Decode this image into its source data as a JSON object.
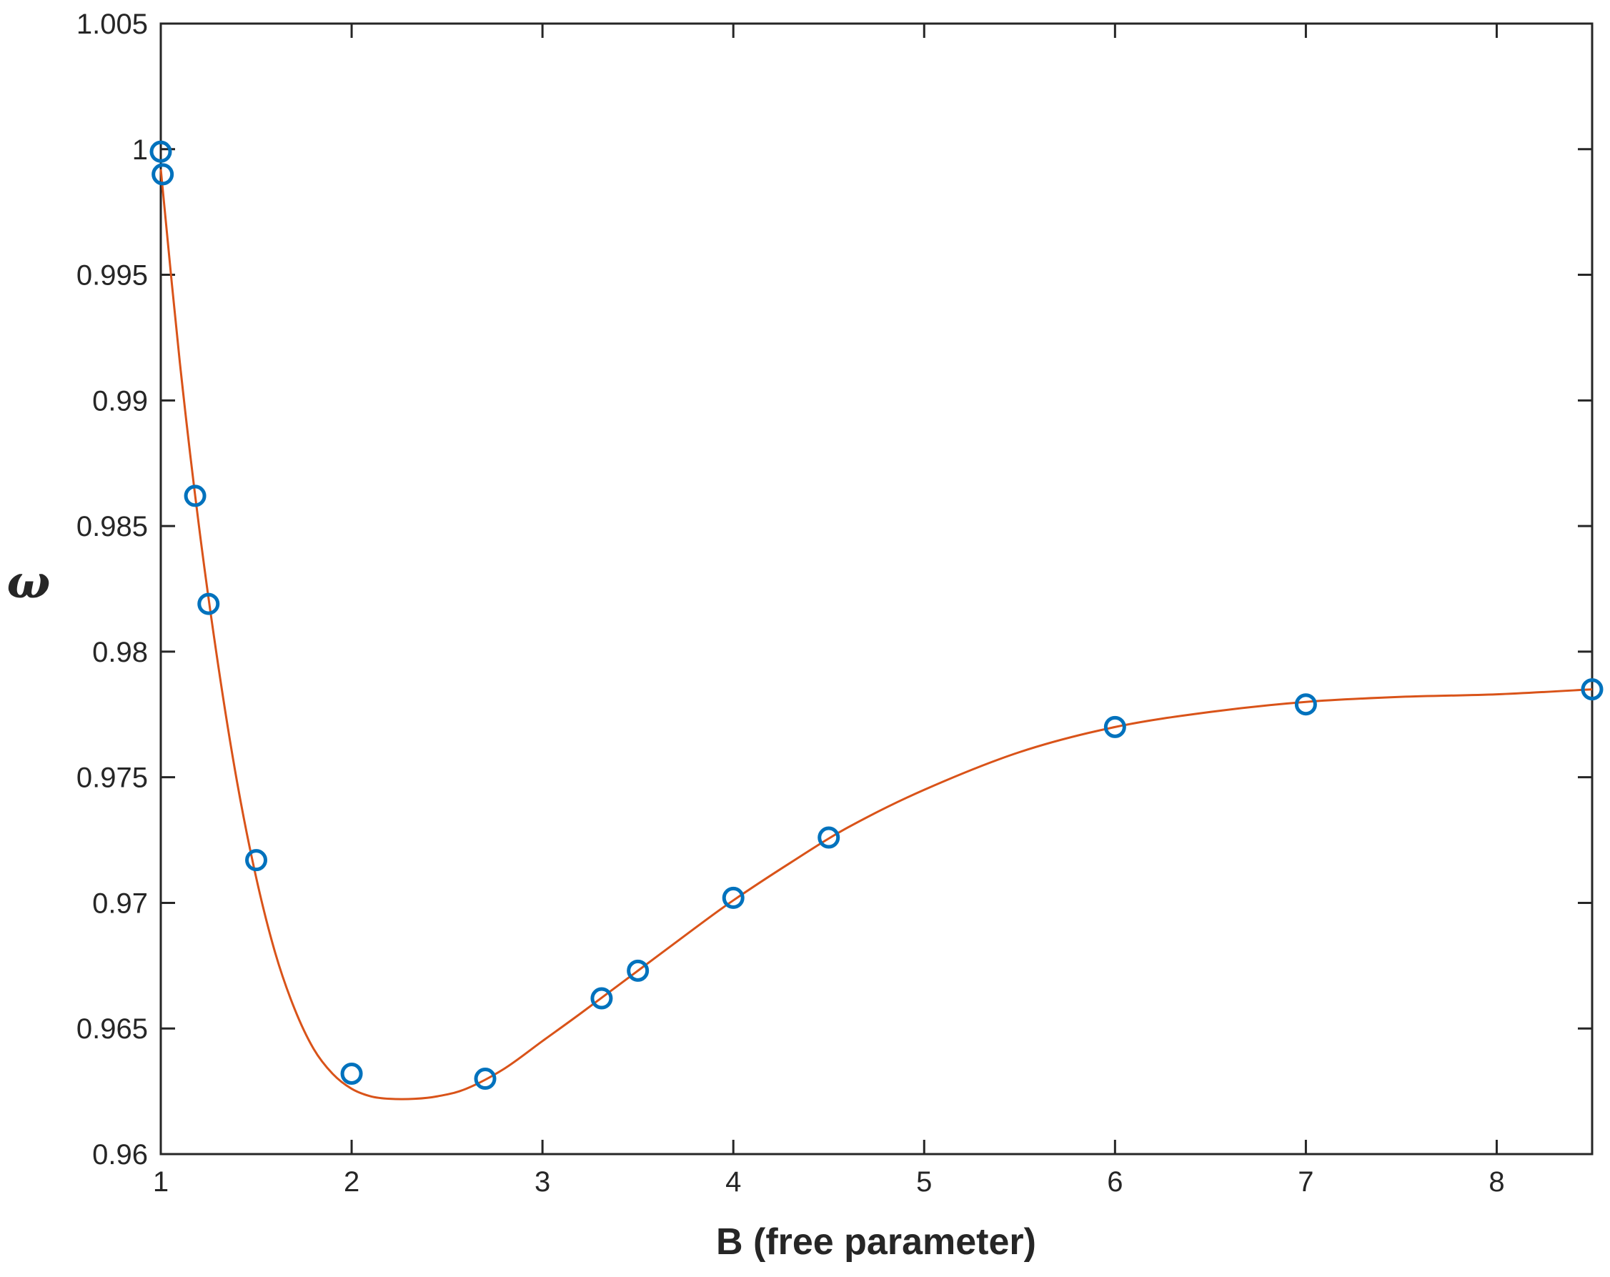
{
  "chart_data": {
    "type": "scatter",
    "title": "",
    "xlabel": "B (free parameter)",
    "ylabel": "ω",
    "xlim": [
      1,
      8.5
    ],
    "ylim": [
      0.96,
      1.005
    ],
    "xticks": [
      1,
      2,
      3,
      4,
      5,
      6,
      7,
      8
    ],
    "xtick_labels": [
      "1",
      "2",
      "3",
      "4",
      "5",
      "6",
      "7",
      "8"
    ],
    "yticks": [
      0.96,
      0.965,
      0.97,
      0.975,
      0.98,
      0.985,
      0.99,
      0.995,
      1,
      1.005
    ],
    "ytick_labels": [
      "0.96",
      "0.965",
      "0.97",
      "0.975",
      "0.98",
      "0.985",
      "0.99",
      "0.995",
      "1",
      "1.005"
    ],
    "grid": false,
    "series": [
      {
        "kind": "markers",
        "marker": "circle",
        "color": "#0072BD",
        "x": [
          1.0,
          1.01,
          1.18,
          1.25,
          1.5,
          2.0,
          2.7,
          3.31,
          3.5,
          4.0,
          4.5,
          6.0,
          7.0,
          8.5
        ],
        "y": [
          0.9999,
          0.999,
          0.9862,
          0.9819,
          0.9717,
          0.9632,
          0.963,
          0.9662,
          0.9673,
          0.9702,
          0.9726,
          0.977,
          0.9779,
          0.9785
        ]
      },
      {
        "kind": "line",
        "color": "#D95319",
        "x": [
          1.0,
          1.1,
          1.2,
          1.3,
          1.4,
          1.5,
          1.6,
          1.7,
          1.8,
          1.9,
          2.0,
          2.1,
          2.2,
          2.33,
          2.45,
          2.6,
          2.8,
          3.0,
          3.2,
          3.5,
          3.8,
          4.0,
          4.3,
          4.6,
          5.0,
          5.5,
          6.0,
          6.5,
          7.0,
          7.5,
          8.0,
          8.5
        ],
        "y": [
          0.9992,
          0.9915,
          0.985,
          0.9795,
          0.9748,
          0.971,
          0.968,
          0.9658,
          0.9642,
          0.9632,
          0.9626,
          0.9623,
          0.9622,
          0.9622,
          0.9623,
          0.9626,
          0.9634,
          0.9645,
          0.9656,
          0.9673,
          0.969,
          0.9701,
          0.9716,
          0.973,
          0.9745,
          0.976,
          0.977,
          0.9776,
          0.978,
          0.9782,
          0.9783,
          0.9785
        ]
      }
    ]
  }
}
